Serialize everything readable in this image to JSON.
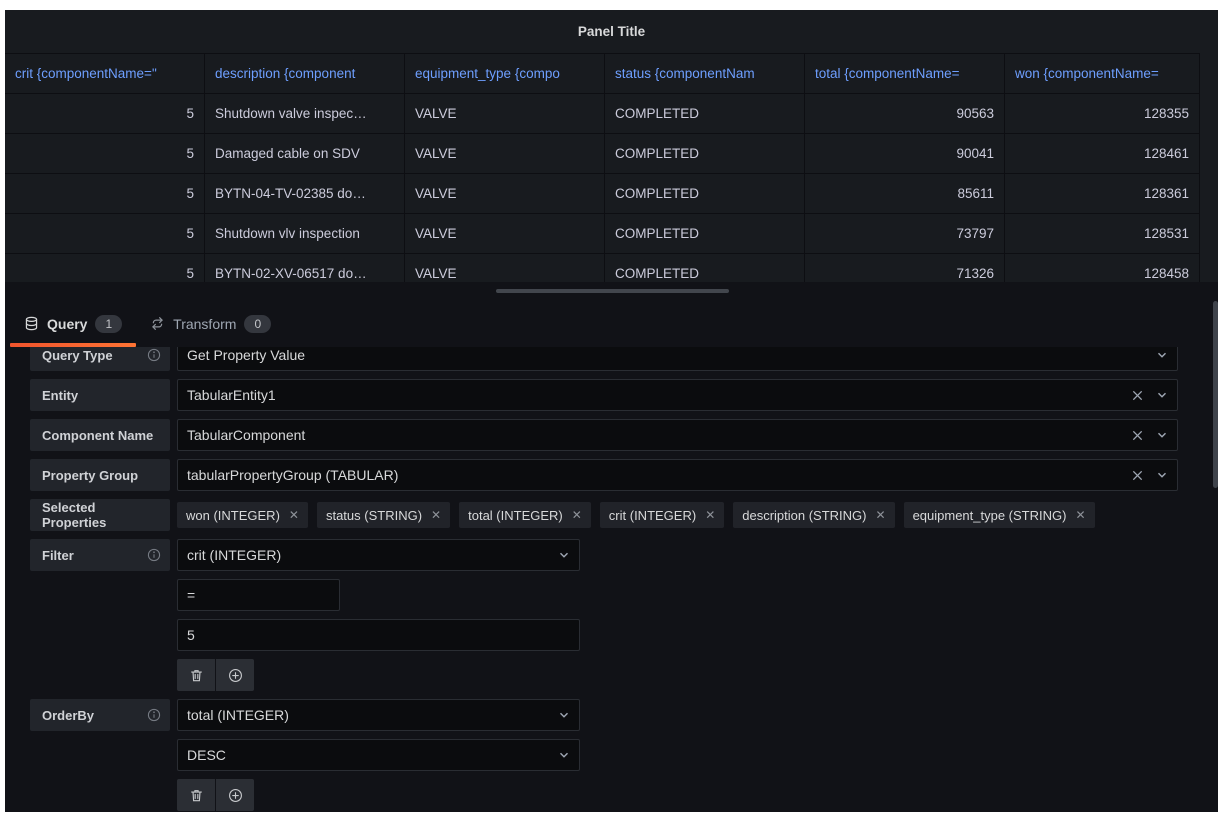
{
  "panel": {
    "title": "Panel Title",
    "table": {
      "columns": [
        {
          "label": "crit {componentName=\"",
          "align": "right"
        },
        {
          "label": "description {component",
          "align": "left"
        },
        {
          "label": "equipment_type {compo",
          "align": "left"
        },
        {
          "label": "status {componentNam",
          "align": "left"
        },
        {
          "label": "total {componentName=",
          "align": "right"
        },
        {
          "label": "won {componentName=",
          "align": "right"
        }
      ],
      "rows": [
        [
          "5",
          "Shutdown valve inspec…",
          "VALVE",
          "COMPLETED",
          "90563",
          "128355"
        ],
        [
          "5",
          "Damaged cable on SDV",
          "VALVE",
          "COMPLETED",
          "90041",
          "128461"
        ],
        [
          "5",
          "BYTN-04-TV-02385 do…",
          "VALVE",
          "COMPLETED",
          "85611",
          "128361"
        ],
        [
          "5",
          "Shutdown vlv inspection",
          "VALVE",
          "COMPLETED",
          "73797",
          "128531"
        ],
        [
          "5",
          "BYTN-02-XV-06517 do…",
          "VALVE",
          "COMPLETED",
          "71326",
          "128458"
        ]
      ]
    }
  },
  "tabs": {
    "query": {
      "label": "Query",
      "count": "1"
    },
    "transform": {
      "label": "Transform",
      "count": "0"
    }
  },
  "editor": {
    "query_type": {
      "label": "Query Type",
      "value": "Get Property Value"
    },
    "entity": {
      "label": "Entity",
      "value": "TabularEntity1"
    },
    "component_name": {
      "label": "Component Name",
      "value": "TabularComponent"
    },
    "property_group": {
      "label": "Property Group",
      "value": "tabularPropertyGroup (TABULAR)"
    },
    "selected_properties": {
      "label": "Selected Properties",
      "tags": [
        "won (INTEGER)",
        "status (STRING)",
        "total (INTEGER)",
        "crit (INTEGER)",
        "description (STRING)",
        "equipment_type (STRING)"
      ]
    },
    "filter": {
      "label": "Filter",
      "attribute": "crit (INTEGER)",
      "operator": "=",
      "value": "5"
    },
    "order_by": {
      "label": "OrderBy",
      "attribute": "total (INTEGER)",
      "direction": "DESC"
    }
  },
  "icons": {
    "query_tab": "database-icon",
    "transform_tab": "transform-icon",
    "label_help": "info-circle-icon",
    "select_open": "chevron-down-icon",
    "select_clear": "x-icon",
    "tag_remove": "x-icon",
    "row_delete": "trash-icon",
    "row_add": "plus-circle-icon"
  },
  "colors": {
    "accent_orange": "#ff6a2e",
    "header_link_blue": "#6e9fff",
    "page_bg": "#111217",
    "panel_bg": "#181b1f"
  }
}
